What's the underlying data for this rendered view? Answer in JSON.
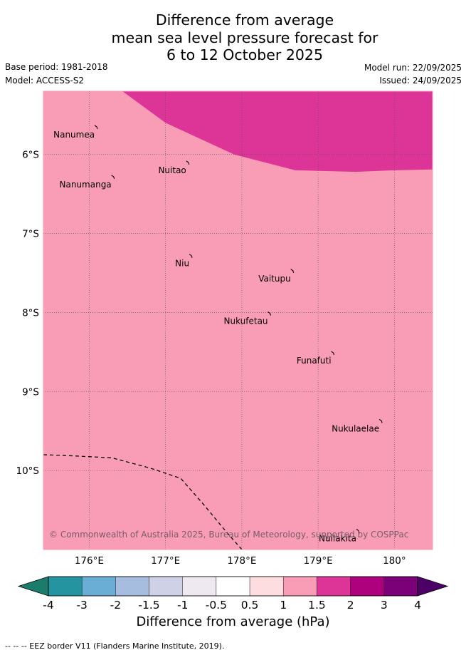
{
  "title": {
    "line1": "Difference from average",
    "line2": "mean sea level pressure forecast for",
    "line3": "6 to 12 October 2025"
  },
  "meta": {
    "base_period": "Base period: 1981-2018",
    "model": "Model: ACCESS-S2",
    "model_run": "Model run: 22/09/2025",
    "issued": "Issued: 24/09/2025"
  },
  "map": {
    "lon_range": [
      175.4,
      180.5
    ],
    "lat_range": [
      -11.0,
      -5.2
    ],
    "background_color": "#f99db6",
    "high_color": "#dd3497",
    "lon_ticks": [
      {
        "value": 176,
        "label": "176°E"
      },
      {
        "value": 177,
        "label": "177°E"
      },
      {
        "value": 178,
        "label": "178°E"
      },
      {
        "value": 179,
        "label": "179°E"
      },
      {
        "value": 180,
        "label": "180°"
      }
    ],
    "lat_ticks": [
      {
        "value": -6,
        "label": "6°S"
      },
      {
        "value": -7,
        "label": "7°S"
      },
      {
        "value": -8,
        "label": "8°S"
      },
      {
        "value": -9,
        "label": "9°S"
      },
      {
        "value": -10,
        "label": "10°S"
      }
    ],
    "high_region_boundary": [
      [
        176.35,
        -5.14
      ],
      [
        177.0,
        -5.6
      ],
      [
        177.9,
        -6.0
      ],
      [
        178.7,
        -6.2
      ],
      [
        179.5,
        -6.22
      ],
      [
        180.0,
        -6.2
      ],
      [
        180.5,
        -6.19
      ],
      [
        180.5,
        -5.14
      ]
    ],
    "islands": [
      {
        "name": "Nanumea",
        "lon": 176.1,
        "lat": -5.66
      },
      {
        "name": "Nuitao",
        "lon": 177.3,
        "lat": -6.11
      },
      {
        "name": "Nanumanga",
        "lon": 176.32,
        "lat": -6.29
      },
      {
        "name": "Niu",
        "lon": 177.34,
        "lat": -7.29
      },
      {
        "name": "Vaitupu",
        "lon": 178.67,
        "lat": -7.48
      },
      {
        "name": "Nukufetau",
        "lon": 178.37,
        "lat": -8.02
      },
      {
        "name": "Funafuti",
        "lon": 179.2,
        "lat": -8.52
      },
      {
        "name": "Nukulaelae",
        "lon": 179.83,
        "lat": -9.38
      },
      {
        "name": "Nuilakita",
        "lon": 179.53,
        "lat": -10.77
      }
    ],
    "eez_border": [
      [
        175.4,
        -9.8
      ],
      [
        175.7,
        -9.81
      ],
      [
        176.3,
        -9.84
      ],
      [
        176.8,
        -9.97
      ],
      [
        177.2,
        -10.1
      ],
      [
        177.5,
        -10.43
      ],
      [
        177.8,
        -10.78
      ],
      [
        178.0,
        -11.0
      ]
    ],
    "copyright": "© Commonwealth of Australia 2025, Bureau of Meteorology, supported by COSPPac"
  },
  "colorbar": {
    "tick_labels": [
      "-4",
      "-3",
      "-2",
      "-1.5",
      "-1",
      "-0.5",
      "0.5",
      "1",
      "1.5",
      "2",
      "3",
      "4"
    ],
    "colors": [
      "#1b7c6c",
      "#2394a0",
      "#6aadd5",
      "#a7bddf",
      "#cfd1e7",
      "#eee9f0",
      "#ffffff",
      "#fddddf",
      "#f99db6",
      "#dd3497",
      "#ad017e",
      "#7a0177",
      "#4d0066"
    ],
    "label": "Difference from average (hPa)"
  },
  "footer": "--  --  -- EEZ border V11 (Flanders Marine Institute, 2019)."
}
